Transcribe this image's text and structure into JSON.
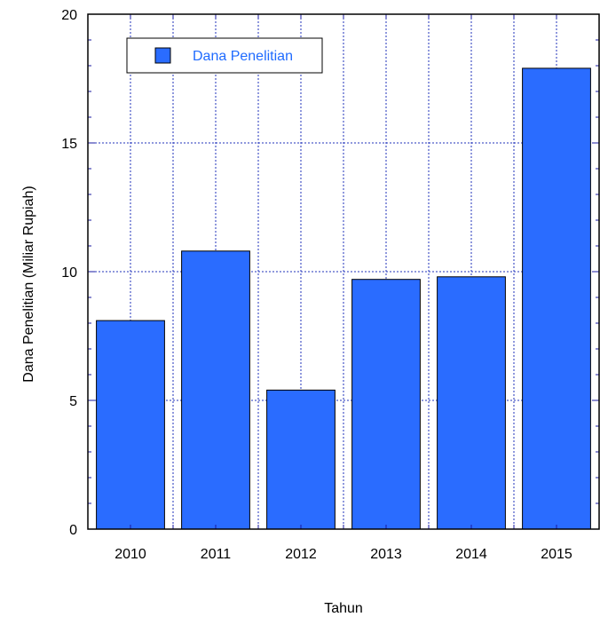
{
  "chart_data": {
    "type": "bar",
    "categories": [
      "2010",
      "2011",
      "2012",
      "2013",
      "2014",
      "2015"
    ],
    "series": [
      {
        "name": "Dana Penelitian",
        "values": [
          8.1,
          10.8,
          5.4,
          9.7,
          9.8,
          17.9
        ]
      }
    ],
    "xlabel": "Tahun",
    "ylabel": "Dana Penelitian (Miliar Rupiah)",
    "ylim": [
      0,
      20
    ],
    "yticks": [
      "0",
      "5",
      "10",
      "15",
      "20"
    ],
    "grid": true,
    "legend_position": "top-left",
    "colors": {
      "bar": "#2a6cff",
      "legend_text": "#1f6bff",
      "grid": "#2233bb"
    }
  }
}
